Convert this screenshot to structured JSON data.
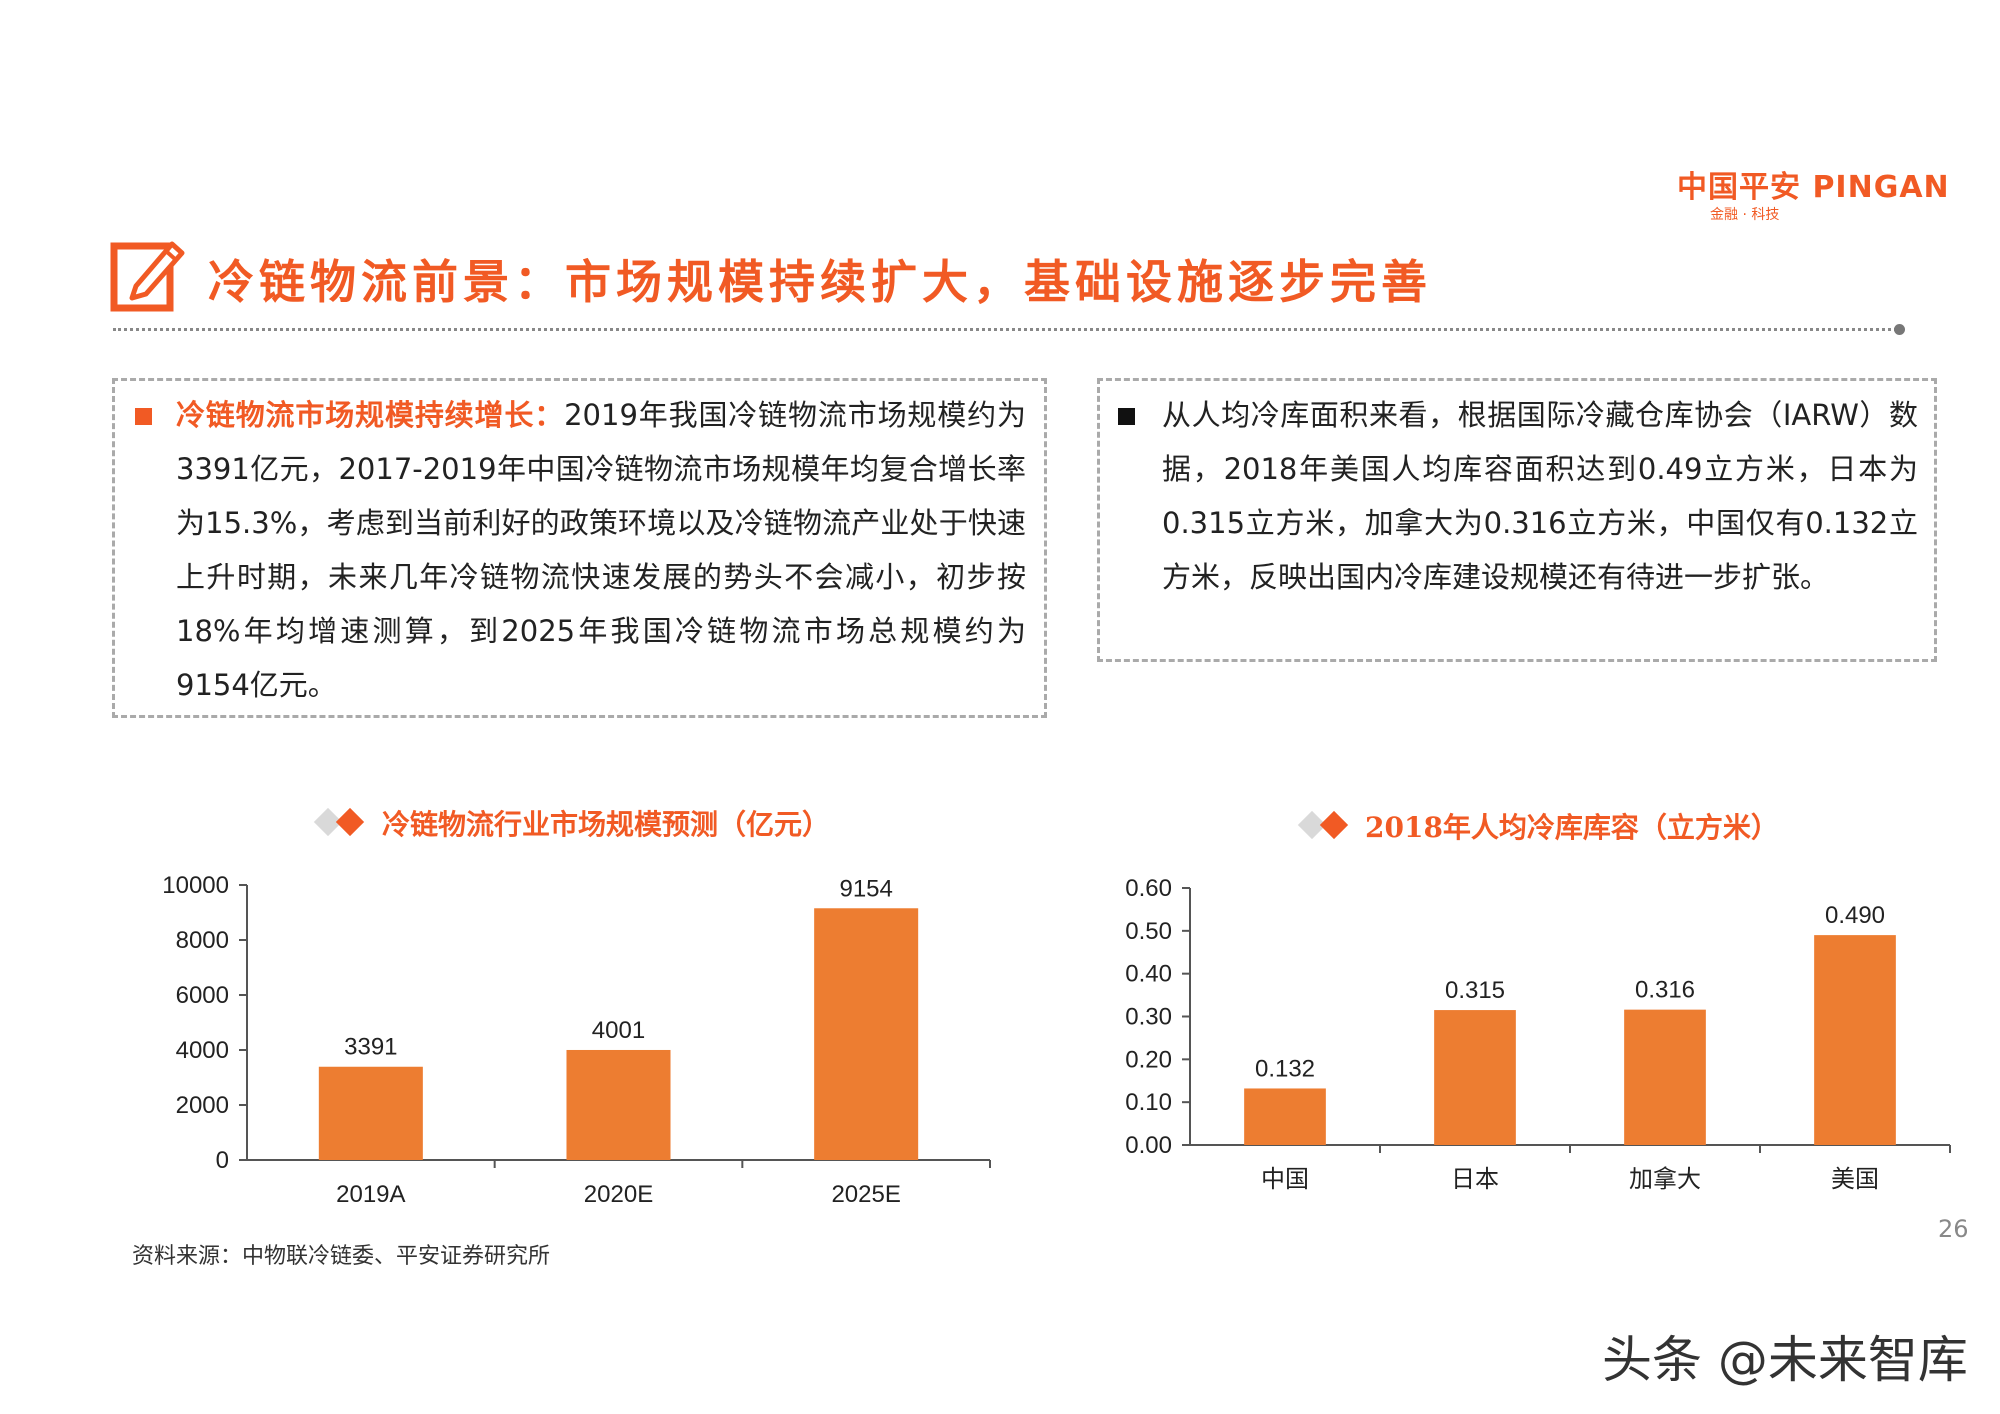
{
  "logo": {
    "main": "中国平安 PINGAN",
    "sub": "金融 · 科技"
  },
  "page_title": "冷链物流前景：市场规模持续扩大，基础设施逐步完善",
  "left_box": {
    "highlight": "冷链物流市场规模持续增长：",
    "body": "2019年我国冷链物流市场规模约为3391亿元，2017-2019年中国冷链物流市场规模年均复合增长率为15.3%，考虑到当前利好的政策环境以及冷链物流产业处于快速上升时期，未来几年冷链物流快速发展的势头不会减小，初步按18%年均增速测算，到2025年我国冷链物流市场总规模约为9154亿元。"
  },
  "right_box": {
    "body": "从人均冷库面积来看，根据国际冷藏仓库协会（IARW）数据，2018年美国人均库容面积达到0.49立方米，日本为0.315立方米，加拿大为0.316立方米，中国仅有0.132立方米，反映出国内冷库建设规模还有待进一步扩张。"
  },
  "chart_data": [
    {
      "type": "bar",
      "title": "冷链物流行业市场规模预测（亿元）",
      "categories": [
        "2019A",
        "2020E",
        "2025E"
      ],
      "values": [
        3391,
        4001,
        9154
      ],
      "value_labels": [
        "3391",
        "4001",
        "9154"
      ],
      "ylim": [
        0,
        10000
      ],
      "yticks": [
        "0",
        "2000",
        "4000",
        "6000",
        "8000",
        "10000"
      ],
      "color": "#ed7d31",
      "grid": false,
      "legend": "none"
    },
    {
      "type": "bar",
      "title": "2018年人均冷库库容（立方米）",
      "categories": [
        "中国",
        "日本",
        "加拿大",
        "美国"
      ],
      "values": [
        0.132,
        0.315,
        0.316,
        0.49
      ],
      "value_labels": [
        "0.132",
        "0.315",
        "0.316",
        "0.490"
      ],
      "ylim": [
        0,
        0.6
      ],
      "yticks": [
        "0.00",
        "0.10",
        "0.20",
        "0.30",
        "0.40",
        "0.50",
        "0.60"
      ],
      "color": "#ed7d31",
      "grid": false,
      "legend": "none"
    }
  ],
  "source": "资料来源：中物联冷链委、平安证券研究所",
  "page_number": "26",
  "watermark": "头条 @未来智库"
}
